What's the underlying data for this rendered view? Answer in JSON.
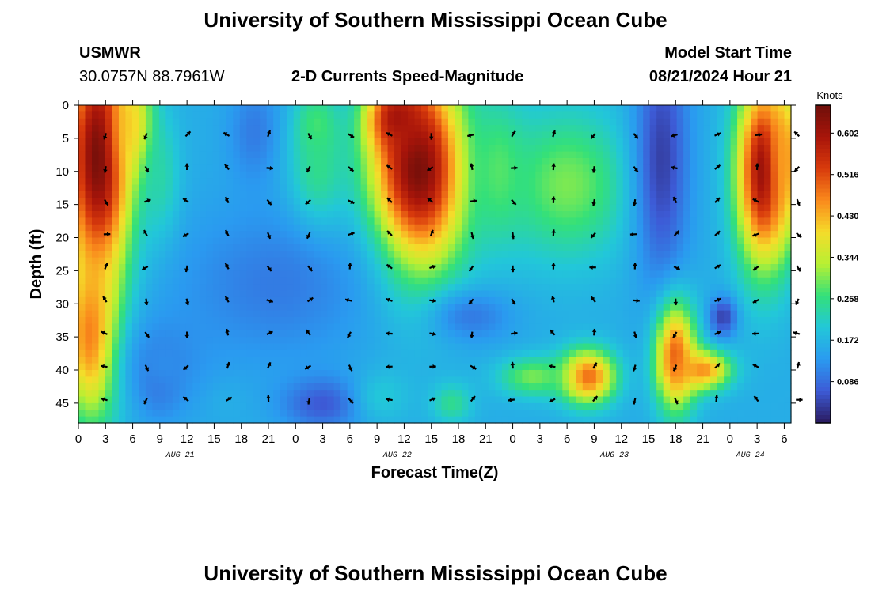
{
  "header": {
    "title": "University of Southern Mississippi Ocean Cube",
    "station": "USMWR",
    "coordinates": "30.0757N  88.7961W",
    "chart_heading": "2-D Currents Speed-Magnitude",
    "model_label": "Model Start Time",
    "model_time": "08/21/2024 Hour 21"
  },
  "footer": {
    "title": "University of Southern Mississippi Ocean Cube"
  },
  "colors": {
    "scale": [
      "#2a1a5e",
      "#3d5bd6",
      "#2a9af0",
      "#22c7d9",
      "#33e07a",
      "#b8f032",
      "#f5dc2a",
      "#fa8a1c",
      "#d83a0c",
      "#a8150a",
      "#6e0f0a"
    ]
  },
  "chart_data": {
    "type": "heatmap",
    "title": "2-D Currents Speed-Magnitude",
    "xlabel": "Forecast Time(Z)",
    "ylabel": "Depth (ft)",
    "colorbar_label": "Knots",
    "colorbar_ticks": [
      "0.602",
      "0.516",
      "0.430",
      "0.344",
      "0.258",
      "0.172",
      "0.086"
    ],
    "colorbar_range": [
      0.0,
      0.66
    ],
    "x_range": [
      0,
      105
    ],
    "y_range": [
      0,
      48
    ],
    "x_ticks": [
      "0",
      "3",
      "6",
      "9",
      "12",
      "15",
      "18",
      "21",
      "0",
      "3",
      "6",
      "9",
      "12",
      "15",
      "18",
      "21",
      "0",
      "3",
      "6",
      "9",
      "12",
      "15",
      "18",
      "21",
      "0",
      "3",
      "6"
    ],
    "y_ticks": [
      "0",
      "5",
      "10",
      "15",
      "20",
      "25",
      "30",
      "35",
      "40",
      "45"
    ],
    "date_labels": [
      {
        "text": "AUG 21",
        "hour": 15
      },
      {
        "text": "AUG 22",
        "hour": 47
      },
      {
        "text": "AUG 23",
        "hour": 79
      },
      {
        "text": "AUG 24",
        "hour": 99
      }
    ],
    "arrow_depths": [
      4.5,
      9.5,
      14.5,
      19.5,
      24.5,
      29.5,
      34.5,
      39.5,
      44.5
    ],
    "arrow_interval_hours": 6,
    "blobs": [
      {
        "t": 3,
        "d": 8,
        "rt": 5,
        "rd": 20,
        "v": 0.66
      },
      {
        "t": 2,
        "d": 35,
        "rt": 4,
        "rd": 12,
        "v": 0.5
      },
      {
        "t": 8,
        "d": 4,
        "rt": 3,
        "rd": 8,
        "v": 0.42
      },
      {
        "t": 12,
        "d": 12,
        "rt": 3,
        "rd": 10,
        "v": 0.24
      },
      {
        "t": 26,
        "d": 4,
        "rt": 4,
        "rd": 8,
        "v": 0.1
      },
      {
        "t": 35,
        "d": 12,
        "rt": 4,
        "rd": 10,
        "v": 0.27
      },
      {
        "t": 35,
        "d": 3,
        "rt": 3,
        "rd": 5,
        "v": 0.27
      },
      {
        "t": 50,
        "d": 10,
        "rt": 7,
        "rd": 15,
        "v": 0.66
      },
      {
        "t": 47,
        "d": 2,
        "rt": 4,
        "rd": 5,
        "v": 0.6
      },
      {
        "t": 72,
        "d": 12,
        "rt": 9,
        "rd": 11,
        "v": 0.3
      },
      {
        "t": 62,
        "d": 10,
        "rt": 4,
        "rd": 10,
        "v": 0.28
      },
      {
        "t": 86,
        "d": 8,
        "rt": 4,
        "rd": 20,
        "v": 0.04
      },
      {
        "t": 101,
        "d": 10,
        "rt": 4,
        "rd": 14,
        "v": 0.62
      },
      {
        "t": 104,
        "d": 8,
        "rt": 2,
        "rd": 10,
        "v": 0.45
      },
      {
        "t": 75,
        "d": 41,
        "rt": 4,
        "rd": 4,
        "v": 0.5
      },
      {
        "t": 67,
        "d": 41,
        "rt": 5,
        "rd": 3,
        "v": 0.3
      },
      {
        "t": 88,
        "d": 38,
        "rt": 3,
        "rd": 8,
        "v": 0.5
      },
      {
        "t": 92,
        "d": 40,
        "rt": 4,
        "rd": 3,
        "v": 0.46
      },
      {
        "t": 12,
        "d": 41,
        "rt": 3,
        "rd": 5,
        "v": 0.04
      },
      {
        "t": 13,
        "d": 39,
        "rt": 7,
        "rd": 8,
        "v": 0.12
      },
      {
        "t": 36,
        "d": 45,
        "rt": 6,
        "rd": 4,
        "v": 0.06
      },
      {
        "t": 95,
        "d": 32,
        "rt": 2,
        "rd": 3,
        "v": 0.04
      },
      {
        "t": 58,
        "d": 32,
        "rt": 6,
        "rd": 4,
        "v": 0.1
      },
      {
        "t": 29,
        "d": 27,
        "rt": 15,
        "rd": 12,
        "v": 0.1
      },
      {
        "t": 55,
        "d": 45,
        "rt": 3,
        "rd": 3,
        "v": 0.25
      },
      {
        "t": 45,
        "d": 44,
        "rt": 4,
        "rd": 4,
        "v": 0.2
      },
      {
        "t": 22,
        "d": 45,
        "rt": 3,
        "rd": 3,
        "v": 0.16
      }
    ]
  }
}
